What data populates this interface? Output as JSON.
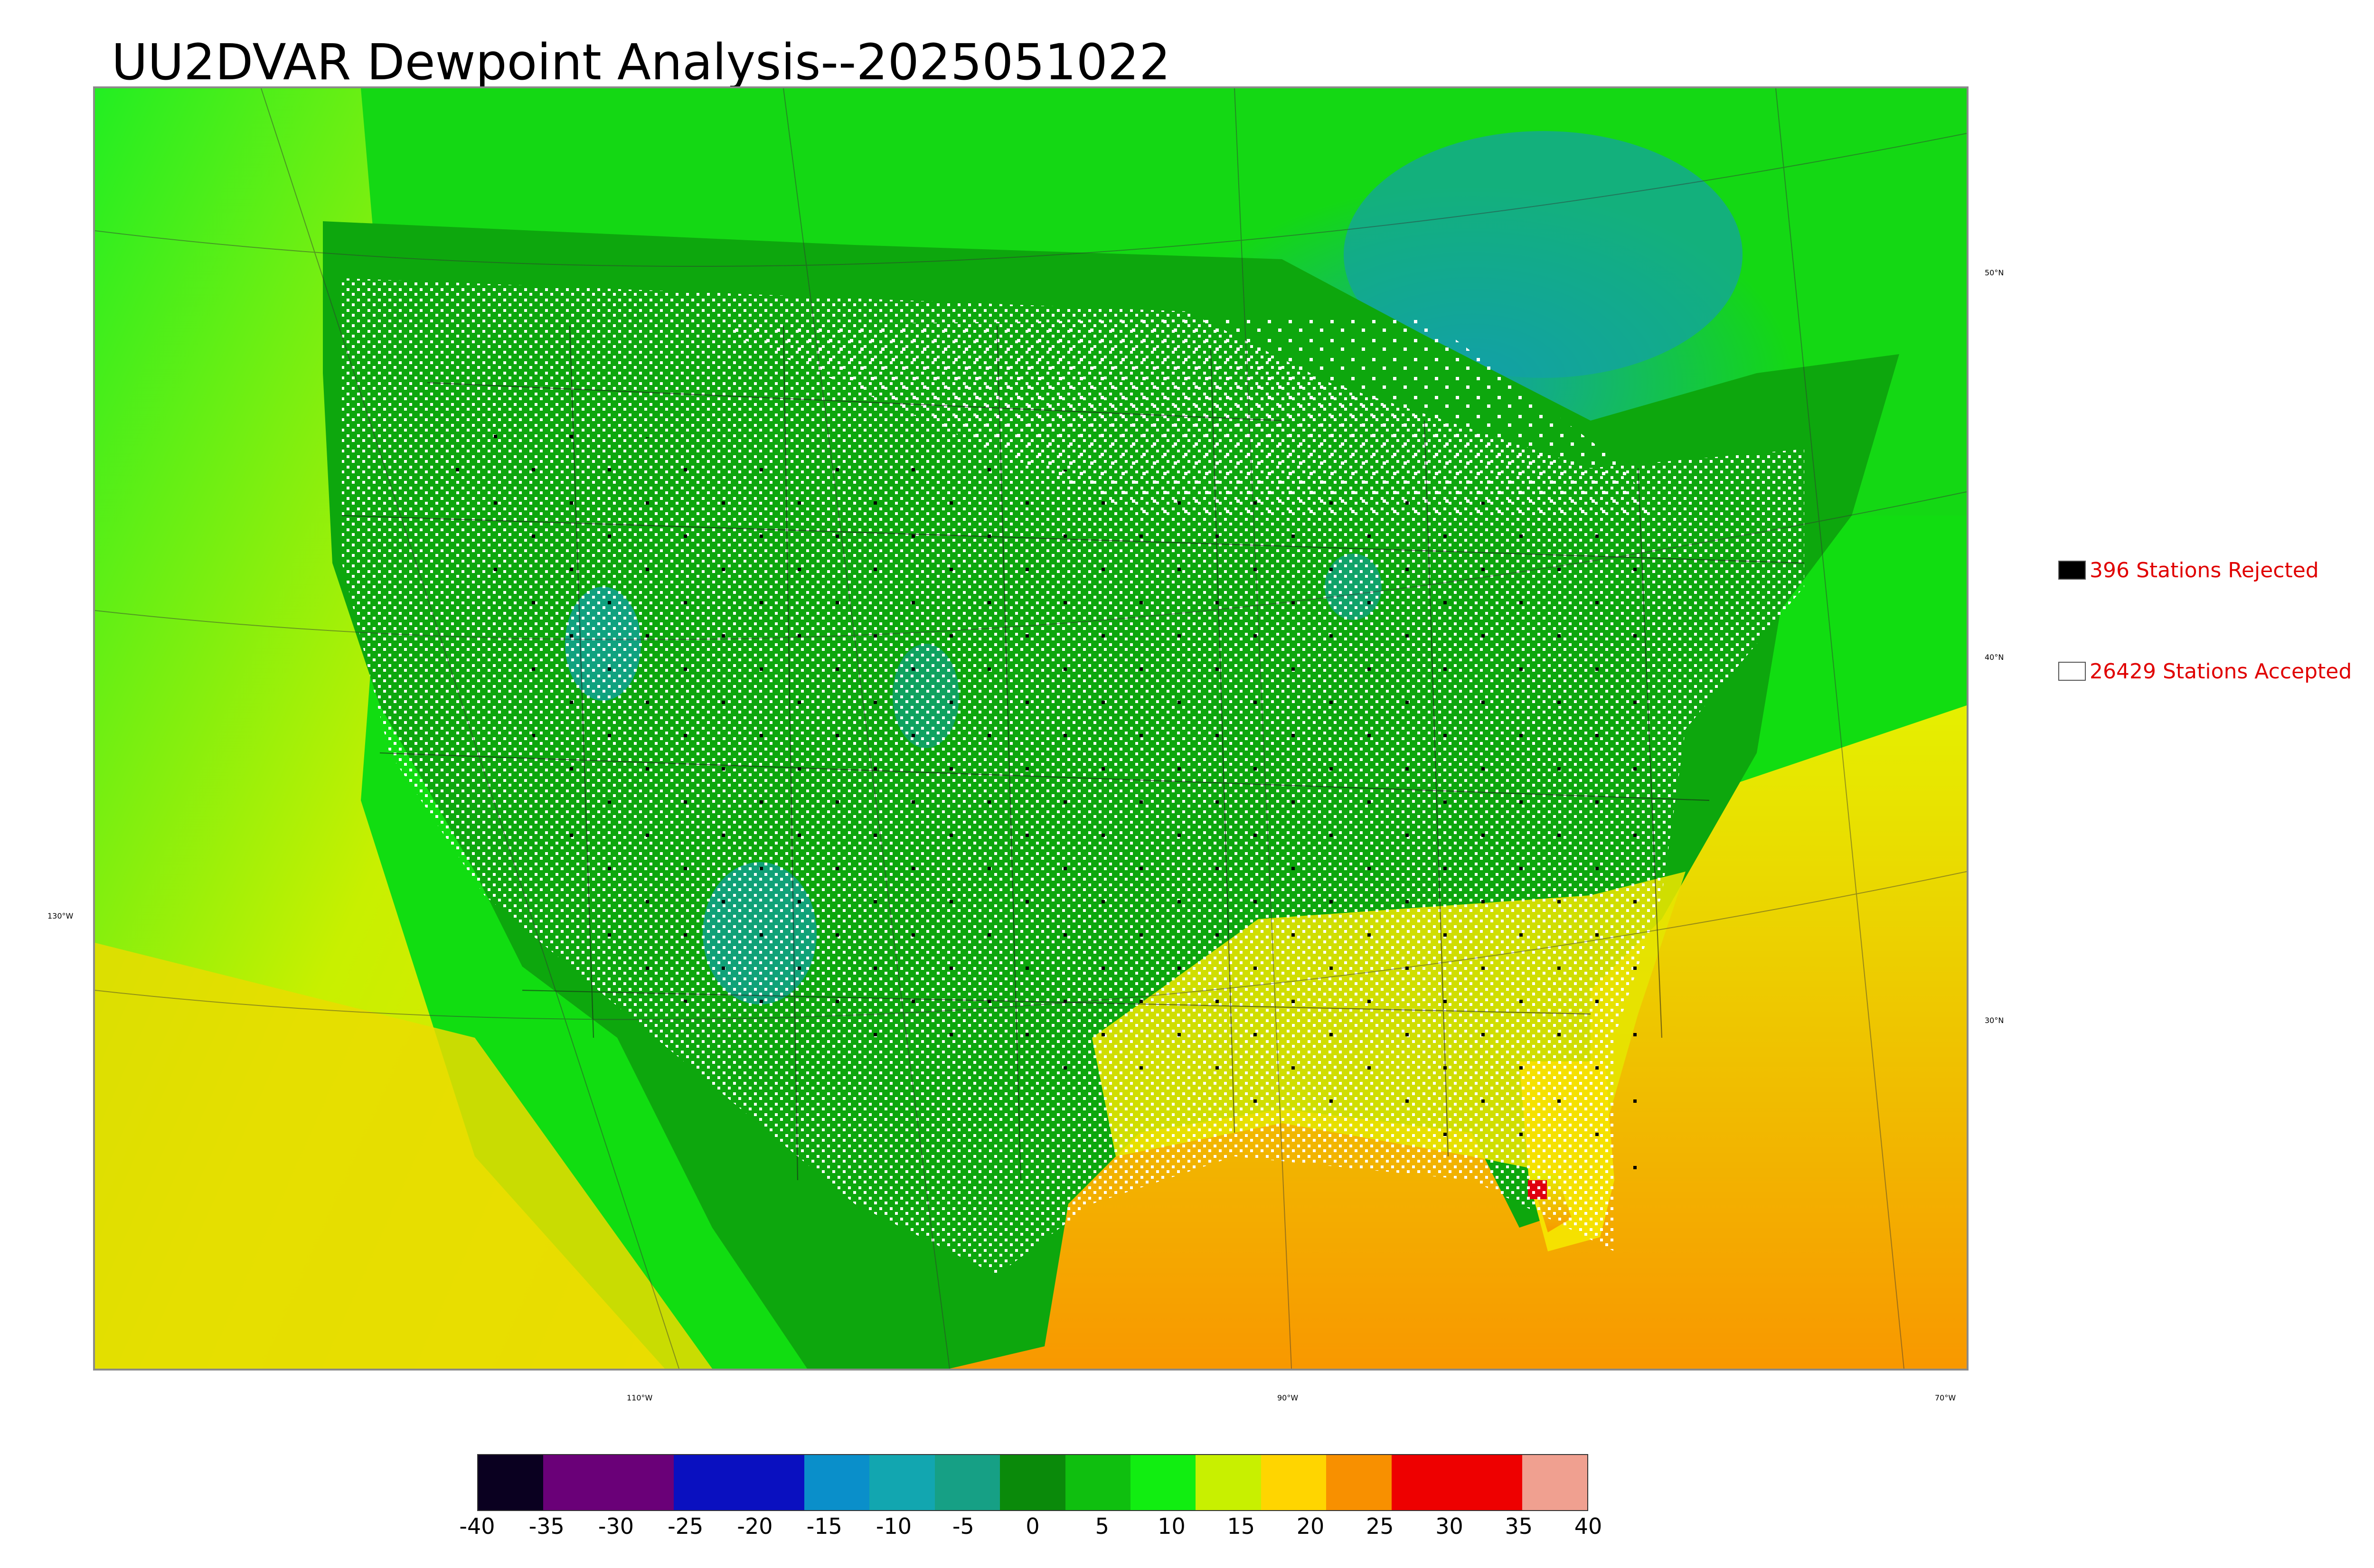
{
  "title": "UU2DVAR Dewpoint Analysis--2025051022",
  "legend": {
    "rejected": {
      "label": "396 Stations Rejected",
      "swatch_color": "#000000"
    },
    "accepted": {
      "label": "26429 Stations Accepted",
      "swatch_color": "#ffffff"
    }
  },
  "graticule": {
    "latitudes": [
      "50°N",
      "40°N",
      "30°N"
    ],
    "longitudes": [
      "130°W",
      "110°W",
      "90°W",
      "70°W"
    ]
  },
  "colorbar": {
    "ticks": [
      "-40",
      "-35",
      "-30",
      "-25",
      "-20",
      "-15",
      "-10",
      "-5",
      "0",
      "5",
      "10",
      "15",
      "20",
      "25",
      "30",
      "35",
      "40"
    ],
    "colors": [
      "#0a0020",
      "#6a0078",
      "#6a0078",
      "#0a10c0",
      "#0a10c0",
      "#0a8fca",
      "#12a6b0",
      "#16a085",
      "#0a8a0a",
      "#0fbf0f",
      "#11ee11",
      "#c8f000",
      "#ffd500",
      "#f89000",
      "#ee0000",
      "#ee0000",
      "#f0a090"
    ]
  },
  "map_colors": {
    "ocean_west": "#c8f000",
    "ocean_south": "#f7a800",
    "land_default": "#10b010",
    "cold_region": "#12a0a6",
    "warm_south": "#e9e400",
    "florida_hot": "#e00010"
  }
}
